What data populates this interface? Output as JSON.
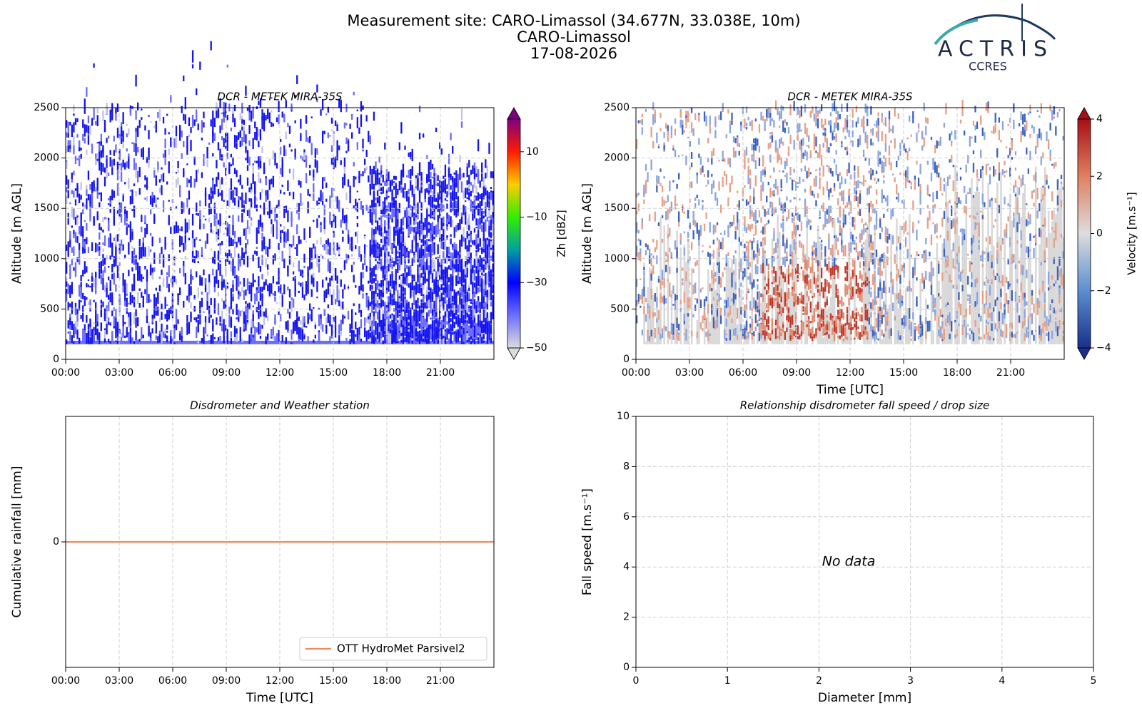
{
  "header": {
    "title_lines": [
      "Measurement site: CARO-Limassol (34.677N, 33.038E, 10m)",
      "CARO-Limassol",
      "17-08-2026"
    ],
    "logo": {
      "name": "ACTRIS",
      "subtitle": "CCRES"
    }
  },
  "chart_data": [
    {
      "type": "heatmap",
      "title": "DCR - METEK MIRA-35S",
      "y_label": "Altitude [m AGL]",
      "xlim": [
        0,
        24
      ],
      "xticks": [
        {
          "value": 0,
          "label": "00:00"
        },
        {
          "value": 3,
          "label": "03:00"
        },
        {
          "value": 6,
          "label": "06:00"
        },
        {
          "value": 9,
          "label": "09:00"
        },
        {
          "value": 12,
          "label": "12:00"
        },
        {
          "value": 15,
          "label": "15:00"
        },
        {
          "value": 18,
          "label": "18:00"
        },
        {
          "value": 21,
          "label": "21:00"
        }
      ],
      "ylim": [
        0,
        2500
      ],
      "yticks": [
        0,
        500,
        1000,
        1500,
        2000,
        2500
      ],
      "grid": true,
      "colorbar": {
        "label": "Zh [dBZ]",
        "lim": [
          -50,
          20
        ],
        "ticks": [
          {
            "value": -50,
            "label": "−50"
          },
          {
            "value": -30,
            "label": "−30"
          },
          {
            "value": -10,
            "label": "−10"
          },
          10
        ],
        "colors": [
          "#dcdcdc",
          "#6e6eff",
          "#0000ff",
          "#00a0a0",
          "#33ee00",
          "#ffcc00",
          "#ff1a00",
          "#800080"
        ]
      }
    },
    {
      "type": "heatmap",
      "title": "DCR - METEK MIRA-35S",
      "x_label": "Time [UTC]",
      "y_label": "Altitude [m AGL]",
      "xlim": [
        0,
        24
      ],
      "xticks": [
        {
          "value": 0,
          "label": "00:00"
        },
        {
          "value": 3,
          "label": "03:00"
        },
        {
          "value": 6,
          "label": "06:00"
        },
        {
          "value": 9,
          "label": "09:00"
        },
        {
          "value": 12,
          "label": "12:00"
        },
        {
          "value": 15,
          "label": "15:00"
        },
        {
          "value": 18,
          "label": "18:00"
        },
        {
          "value": 21,
          "label": "21:00"
        }
      ],
      "ylim": [
        0,
        2500
      ],
      "yticks": [
        0,
        500,
        1000,
        1500,
        2000,
        2500
      ],
      "grid": true,
      "colorbar": {
        "label": "Velocity [m.s⁻¹]",
        "lim": [
          -4,
          4
        ],
        "ticks": [
          {
            "value": -4,
            "label": "−4"
          },
          {
            "value": -2,
            "label": "−2"
          },
          0,
          2,
          4
        ],
        "colors": [
          "#1a2f8c",
          "#5b8ed0",
          "#dddddd",
          "#e08060",
          "#a50f15"
        ]
      }
    },
    {
      "type": "line",
      "title": "Disdrometer and Weather station",
      "x_label": "Time [UTC]",
      "y_label": "Cumulative rainfall [mm]",
      "xlim": [
        0,
        24
      ],
      "xticks": [
        {
          "value": 0,
          "label": "00:00"
        },
        {
          "value": 3,
          "label": "03:00"
        },
        {
          "value": 6,
          "label": "06:00"
        },
        {
          "value": 9,
          "label": "09:00"
        },
        {
          "value": 12,
          "label": "12:00"
        },
        {
          "value": 15,
          "label": "15:00"
        },
        {
          "value": 18,
          "label": "18:00"
        },
        {
          "value": 21,
          "label": "21:00"
        }
      ],
      "ylim": [
        -0.055,
        0.055
      ],
      "yticks": [
        0
      ],
      "grid": true,
      "legend": "lower right",
      "series": [
        {
          "name": "OTT HydroMet Parsivel2",
          "color": "#f08a5d",
          "x": [
            0,
            24
          ],
          "values": [
            0,
            0
          ]
        }
      ]
    },
    {
      "type": "scatter",
      "title": "Relationship disdrometer fall speed / drop size",
      "x_label": "Diameter [mm]",
      "y_label": "Fall speed [m.s⁻¹]",
      "xlim": [
        0,
        5
      ],
      "xticks": [
        0,
        1,
        2,
        3,
        4,
        5
      ],
      "ylim": [
        0,
        10
      ],
      "yticks": [
        0,
        2,
        4,
        6,
        8,
        10
      ],
      "grid": true,
      "annotation": "No data"
    }
  ]
}
